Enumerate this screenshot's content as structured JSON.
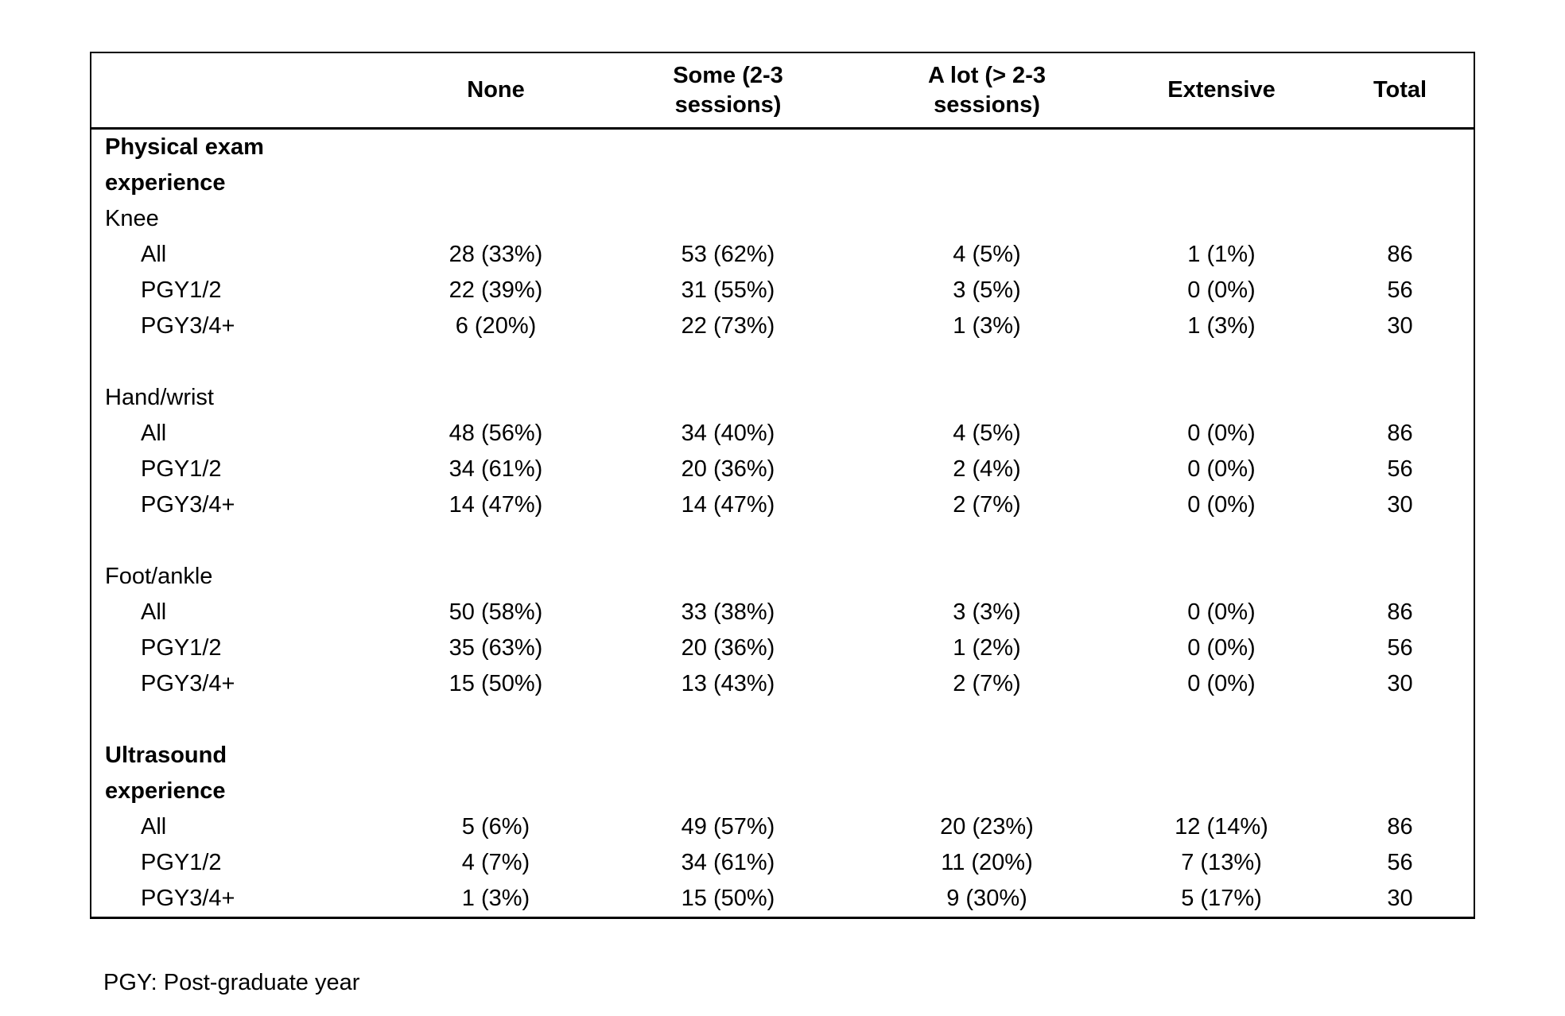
{
  "table": {
    "headers": [
      "",
      "None",
      "Some (2-3\nsessions)",
      "A lot (> 2-3\nsessions)",
      "Extensive",
      "Total"
    ],
    "rows": [
      {
        "label": "Physical exam\nexperience",
        "style": "section",
        "values": [
          "",
          "",
          "",
          "",
          ""
        ]
      },
      {
        "label": "Knee",
        "style": "group",
        "values": [
          "",
          "",
          "",
          "",
          ""
        ]
      },
      {
        "label": "All",
        "style": "sub",
        "values": [
          "28 (33%)",
          "53 (62%)",
          "4 (5%)",
          "1 (1%)",
          "86"
        ]
      },
      {
        "label": "PGY1/2",
        "style": "sub",
        "values": [
          "22 (39%)",
          "31 (55%)",
          "3 (5%)",
          "0 (0%)",
          "56"
        ]
      },
      {
        "label": "PGY3/4+",
        "style": "sub",
        "values": [
          "6 (20%)",
          "22 (73%)",
          "1 (3%)",
          "1 (3%)",
          "30"
        ]
      },
      {
        "label": "",
        "style": "spacer",
        "values": [
          "",
          "",
          "",
          "",
          ""
        ]
      },
      {
        "label": "Hand/wrist",
        "style": "group",
        "values": [
          "",
          "",
          "",
          "",
          ""
        ]
      },
      {
        "label": "All",
        "style": "sub",
        "values": [
          "48 (56%)",
          "34 (40%)",
          "4 (5%)",
          "0 (0%)",
          "86"
        ]
      },
      {
        "label": "PGY1/2",
        "style": "sub",
        "values": [
          "34 (61%)",
          "20 (36%)",
          "2 (4%)",
          "0 (0%)",
          "56"
        ]
      },
      {
        "label": "PGY3/4+",
        "style": "sub",
        "values": [
          "14 (47%)",
          "14 (47%)",
          "2 (7%)",
          "0 (0%)",
          "30"
        ]
      },
      {
        "label": "",
        "style": "spacer",
        "values": [
          "",
          "",
          "",
          "",
          ""
        ]
      },
      {
        "label": "Foot/ankle",
        "style": "group",
        "values": [
          "",
          "",
          "",
          "",
          ""
        ]
      },
      {
        "label": "All",
        "style": "sub",
        "values": [
          "50 (58%)",
          "33 (38%)",
          "3 (3%)",
          "0 (0%)",
          "86"
        ]
      },
      {
        "label": "PGY1/2",
        "style": "sub",
        "values": [
          "35 (63%)",
          "20 (36%)",
          "1 (2%)",
          "0 (0%)",
          "56"
        ]
      },
      {
        "label": "PGY3/4+",
        "style": "sub",
        "values": [
          "15 (50%)",
          "13 (43%)",
          "2 (7%)",
          "0 (0%)",
          "30"
        ]
      },
      {
        "label": "",
        "style": "spacer",
        "values": [
          "",
          "",
          "",
          "",
          ""
        ]
      },
      {
        "label": "Ultrasound\nexperience",
        "style": "section",
        "values": [
          "",
          "",
          "",
          "",
          ""
        ]
      },
      {
        "label": "All",
        "style": "sub",
        "values": [
          "5 (6%)",
          "49 (57%)",
          "20 (23%)",
          "12 (14%)",
          "86"
        ]
      },
      {
        "label": "PGY1/2",
        "style": "sub",
        "values": [
          "4 (7%)",
          "34 (61%)",
          "11 (20%)",
          "7 (13%)",
          "56"
        ]
      },
      {
        "label": "PGY3/4+",
        "style": "sub",
        "values": [
          "1 (3%)",
          "15 (50%)",
          "9 (30%)",
          "5 (17%)",
          "30"
        ]
      }
    ]
  },
  "footnote": "PGY: Post-graduate year",
  "colors": {
    "text": "#000000",
    "border": "#000000",
    "background": "#ffffff"
  }
}
